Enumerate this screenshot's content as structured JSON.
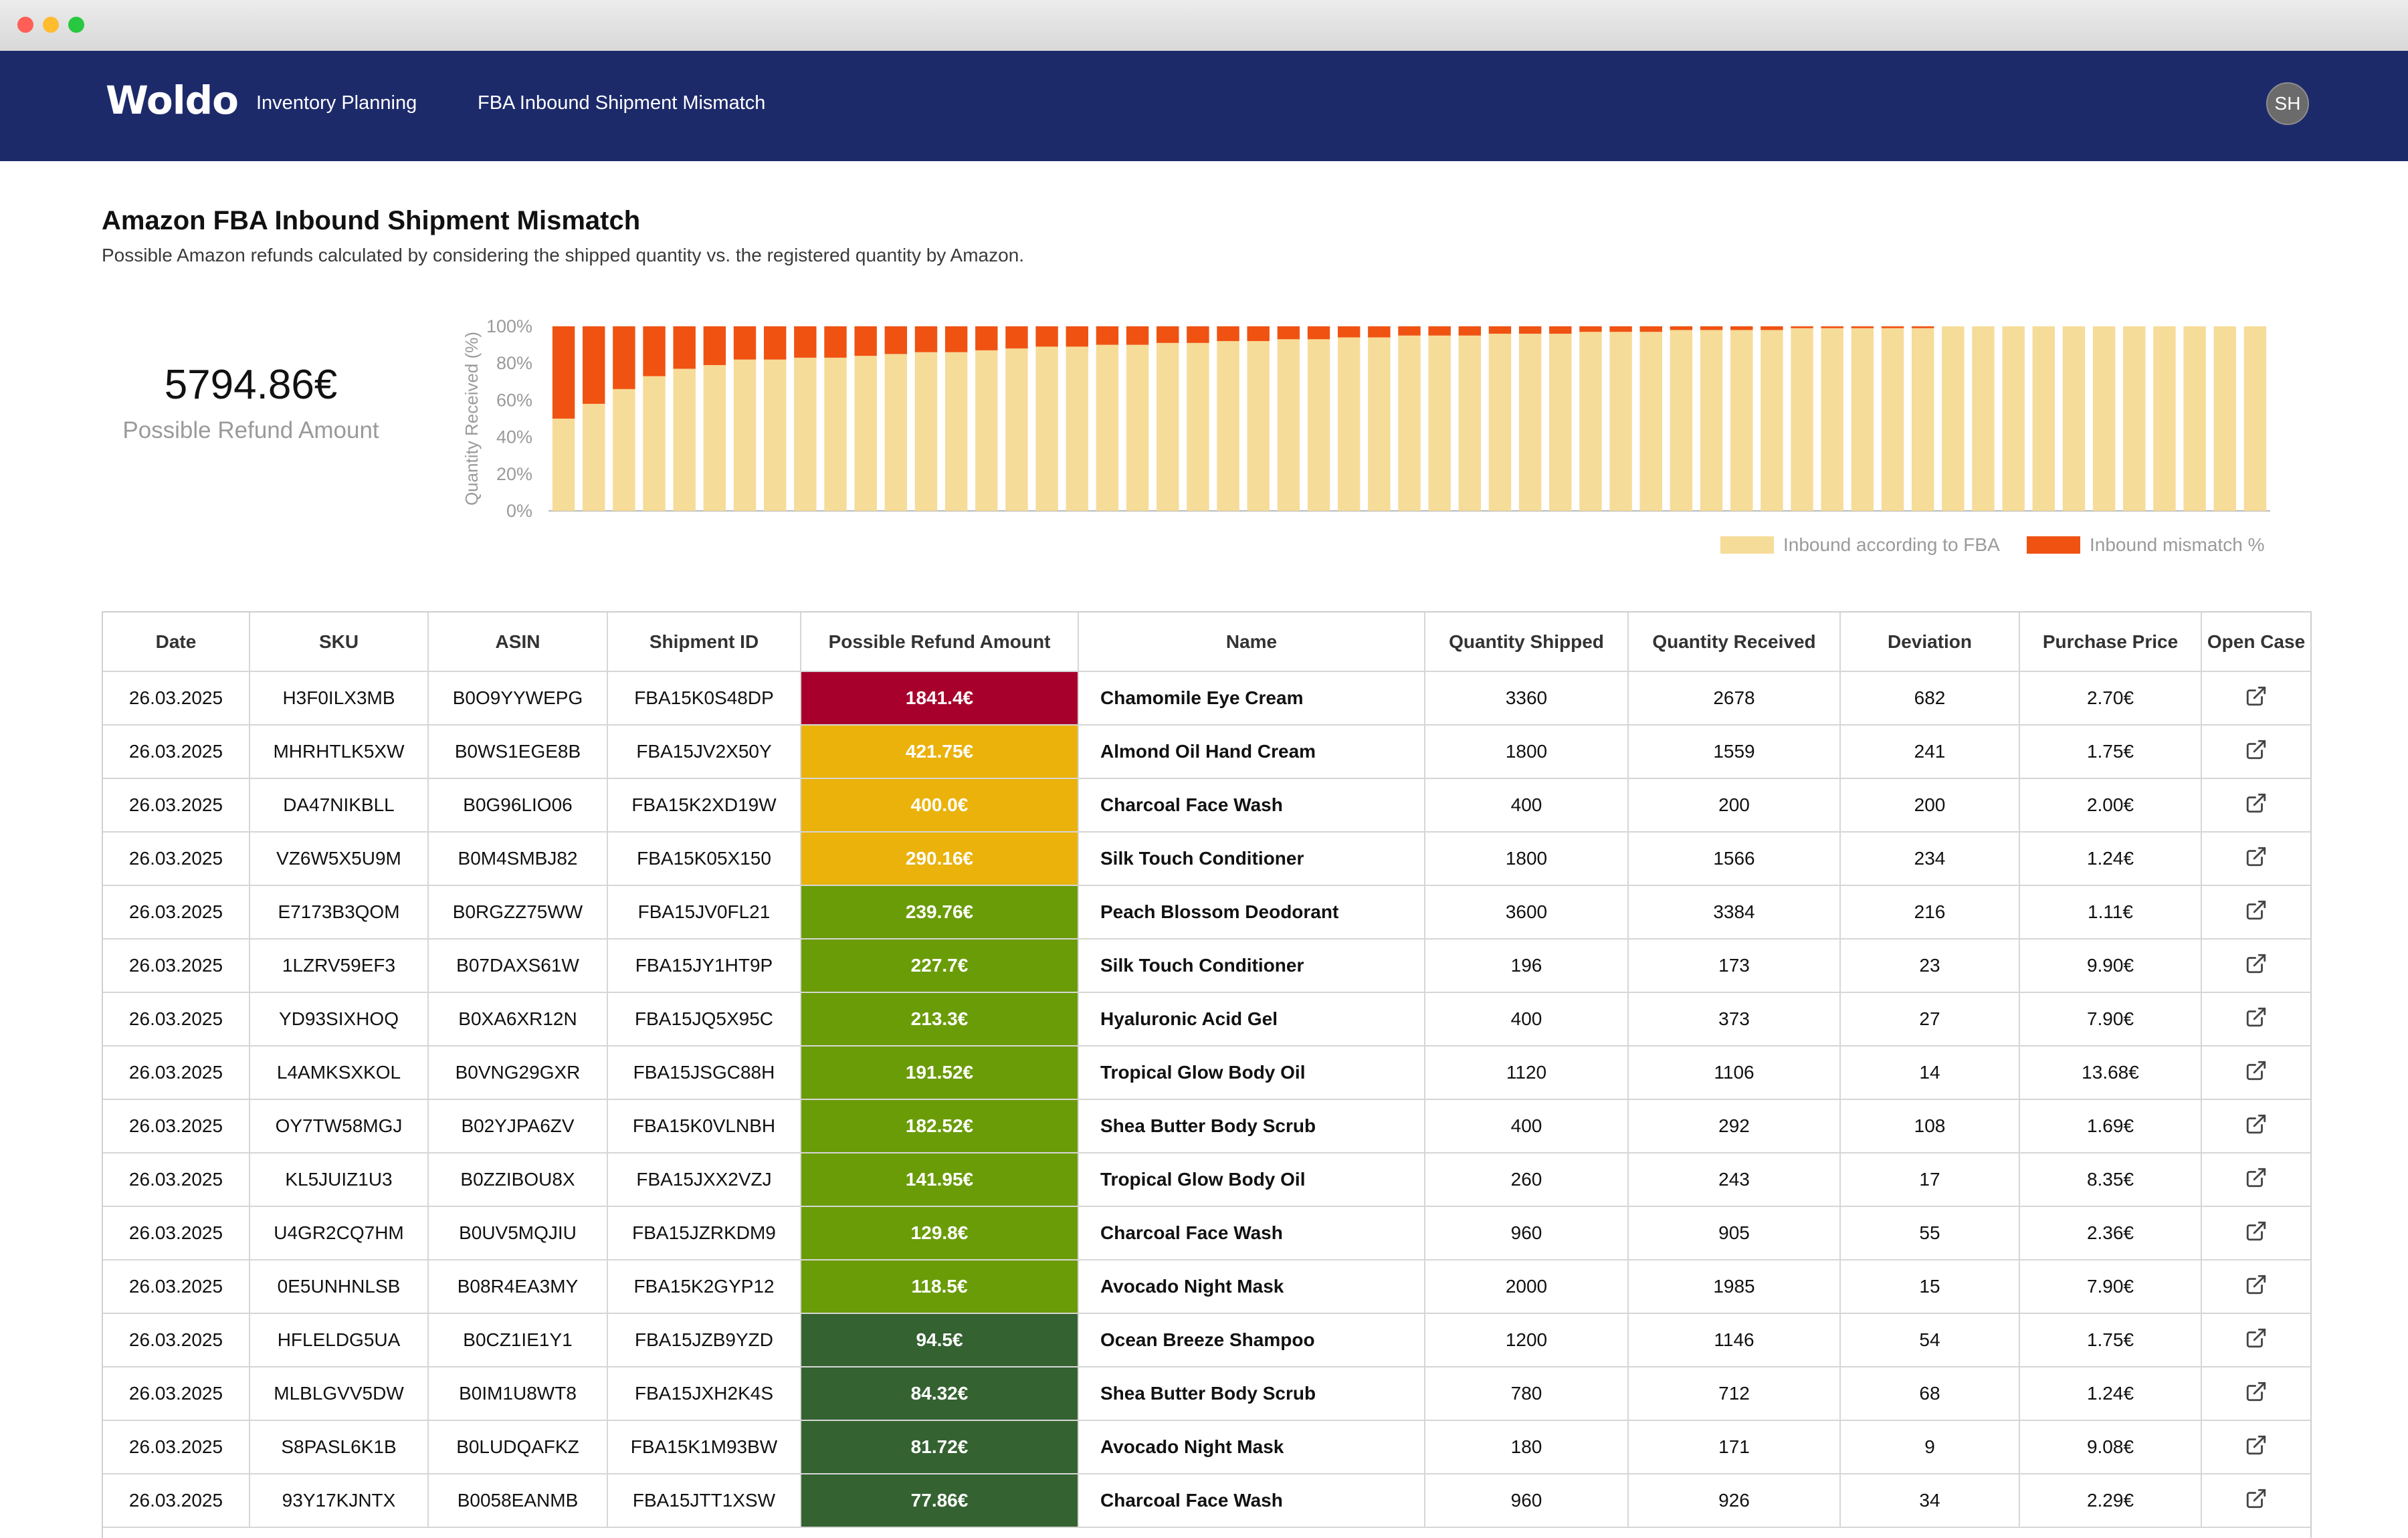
{
  "app": {
    "logo": "Woldo",
    "nav": [
      "Inventory Planning",
      "FBA Inbound Shipment Mismatch"
    ],
    "avatar": "SH"
  },
  "page": {
    "title": "Amazon FBA Inbound Shipment Mismatch",
    "subtitle": "Possible Amazon refunds calculated by considering the shipped quantity vs. the registered quantity by Amazon."
  },
  "kpi": {
    "value": "5794.86€",
    "label": "Possible Refund Amount"
  },
  "colors": {
    "nav": "#1d2a6a",
    "received": "#f6dc99",
    "mismatch": "#f05212",
    "refund_red": "#a8002c",
    "refund_amber": "#eab20a",
    "refund_lime": "#6a9c08",
    "refund_green": "#346231"
  },
  "chart_data": {
    "type": "bar",
    "stacked": true,
    "ylabel": "Quantity Received (%)",
    "yticks": [
      "0%",
      "20%",
      "40%",
      "60%",
      "80%",
      "100%"
    ],
    "ylim": [
      0,
      100
    ],
    "legend": [
      "Inbound according to FBA",
      "Inbound mismatch %"
    ],
    "legend_position": "bottom-right",
    "series": [
      {
        "name": "Inbound according to FBA",
        "values": [
          50,
          58,
          66,
          73,
          77,
          79,
          82,
          82,
          83,
          83,
          84,
          85,
          86,
          86,
          87,
          88,
          89,
          89,
          90,
          90,
          91,
          91,
          92,
          92,
          93,
          93,
          94,
          94,
          95,
          95,
          95,
          96,
          96,
          96,
          97,
          97,
          97,
          98,
          98,
          98,
          98,
          99,
          99,
          99,
          99,
          99,
          100,
          100,
          100,
          100,
          100,
          100,
          100,
          100,
          100,
          100,
          100
        ]
      },
      {
        "name": "Inbound mismatch %",
        "values": [
          50,
          42,
          34,
          27,
          23,
          21,
          18,
          18,
          17,
          17,
          16,
          15,
          14,
          14,
          13,
          12,
          11,
          11,
          10,
          10,
          9,
          9,
          8,
          8,
          7,
          7,
          6,
          6,
          5,
          5,
          5,
          4,
          4,
          4,
          3,
          3,
          3,
          2,
          2,
          2,
          2,
          1,
          1,
          1,
          1,
          1,
          0,
          0,
          0,
          0,
          0,
          0,
          0,
          0,
          0,
          0,
          0
        ]
      }
    ]
  },
  "table": {
    "columns": [
      "Date",
      "SKU",
      "ASIN",
      "Shipment ID",
      "Possible Refund Amount",
      "Name",
      "Quantity Shipped",
      "Quantity Received",
      "Deviation",
      "Purchase Price",
      "Open Case"
    ],
    "rows": [
      {
        "date": "26.03.2025",
        "sku": "H3F0ILX3MB",
        "asin": "B0O9YYWEPG",
        "shipment": "FBA15K0S48DP",
        "refund": "1841.4€",
        "level": "red",
        "name": "Chamomile Eye Cream",
        "shipped": "3360",
        "received": "2678",
        "deviation": "682",
        "price": "2.70€"
      },
      {
        "date": "26.03.2025",
        "sku": "MHRHTLK5XW",
        "asin": "B0WS1EGE8B",
        "shipment": "FBA15JV2X50Y",
        "refund": "421.75€",
        "level": "amber",
        "name": "Almond Oil Hand Cream",
        "shipped": "1800",
        "received": "1559",
        "deviation": "241",
        "price": "1.75€"
      },
      {
        "date": "26.03.2025",
        "sku": "DA47NIKBLL",
        "asin": "B0G96LIO06",
        "shipment": "FBA15K2XD19W",
        "refund": "400.0€",
        "level": "amber",
        "name": "Charcoal Face Wash",
        "shipped": "400",
        "received": "200",
        "deviation": "200",
        "price": "2.00€"
      },
      {
        "date": "26.03.2025",
        "sku": "VZ6W5X5U9M",
        "asin": "B0M4SMBJ82",
        "shipment": "FBA15K05X150",
        "refund": "290.16€",
        "level": "amber",
        "name": "Silk Touch Conditioner",
        "shipped": "1800",
        "received": "1566",
        "deviation": "234",
        "price": "1.24€"
      },
      {
        "date": "26.03.2025",
        "sku": "E7173B3QOM",
        "asin": "B0RGZZ75WW",
        "shipment": "FBA15JV0FL21",
        "refund": "239.76€",
        "level": "lime",
        "name": "Peach Blossom Deodorant",
        "shipped": "3600",
        "received": "3384",
        "deviation": "216",
        "price": "1.11€"
      },
      {
        "date": "26.03.2025",
        "sku": "1LZRV59EF3",
        "asin": "B07DAXS61W",
        "shipment": "FBA15JY1HT9P",
        "refund": "227.7€",
        "level": "lime",
        "name": "Silk Touch Conditioner",
        "shipped": "196",
        "received": "173",
        "deviation": "23",
        "price": "9.90€"
      },
      {
        "date": "26.03.2025",
        "sku": "YD93SIXHOQ",
        "asin": "B0XA6XR12N",
        "shipment": "FBA15JQ5X95C",
        "refund": "213.3€",
        "level": "lime",
        "name": "Hyaluronic Acid Gel",
        "shipped": "400",
        "received": "373",
        "deviation": "27",
        "price": "7.90€"
      },
      {
        "date": "26.03.2025",
        "sku": "L4AMKSXKOL",
        "asin": "B0VNG29GXR",
        "shipment": "FBA15JSGC88H",
        "refund": "191.52€",
        "level": "lime",
        "name": "Tropical Glow Body Oil",
        "shipped": "1120",
        "received": "1106",
        "deviation": "14",
        "price": "13.68€"
      },
      {
        "date": "26.03.2025",
        "sku": "OY7TW58MGJ",
        "asin": "B02YJPA6ZV",
        "shipment": "FBA15K0VLNBH",
        "refund": "182.52€",
        "level": "lime",
        "name": "Shea Butter Body Scrub",
        "shipped": "400",
        "received": "292",
        "deviation": "108",
        "price": "1.69€"
      },
      {
        "date": "26.03.2025",
        "sku": "KL5JUIZ1U3",
        "asin": "B0ZZIBOU8X",
        "shipment": "FBA15JXX2VZJ",
        "refund": "141.95€",
        "level": "lime",
        "name": "Tropical Glow Body Oil",
        "shipped": "260",
        "received": "243",
        "deviation": "17",
        "price": "8.35€"
      },
      {
        "date": "26.03.2025",
        "sku": "U4GR2CQ7HM",
        "asin": "B0UV5MQJIU",
        "shipment": "FBA15JZRKDM9",
        "refund": "129.8€",
        "level": "lime",
        "name": "Charcoal Face Wash",
        "shipped": "960",
        "received": "905",
        "deviation": "55",
        "price": "2.36€"
      },
      {
        "date": "26.03.2025",
        "sku": "0E5UNHNLSB",
        "asin": "B08R4EA3MY",
        "shipment": "FBA15K2GYP12",
        "refund": "118.5€",
        "level": "lime",
        "name": "Avocado Night Mask",
        "shipped": "2000",
        "received": "1985",
        "deviation": "15",
        "price": "7.90€"
      },
      {
        "date": "26.03.2025",
        "sku": "HFLELDG5UA",
        "asin": "B0CZ1IE1Y1",
        "shipment": "FBA15JZB9YZD",
        "refund": "94.5€",
        "level": "green",
        "name": "Ocean Breeze Shampoo",
        "shipped": "1200",
        "received": "1146",
        "deviation": "54",
        "price": "1.75€"
      },
      {
        "date": "26.03.2025",
        "sku": "MLBLGVV5DW",
        "asin": "B0IM1U8WT8",
        "shipment": "FBA15JXH2K4S",
        "refund": "84.32€",
        "level": "green",
        "name": "Shea Butter Body Scrub",
        "shipped": "780",
        "received": "712",
        "deviation": "68",
        "price": "1.24€"
      },
      {
        "date": "26.03.2025",
        "sku": "S8PASL6K1B",
        "asin": "B0LUDQAFKZ",
        "shipment": "FBA15K1M93BW",
        "refund": "81.72€",
        "level": "green",
        "name": "Avocado Night Mask",
        "shipped": "180",
        "received": "171",
        "deviation": "9",
        "price": "9.08€"
      },
      {
        "date": "26.03.2025",
        "sku": "93Y17KJNTX",
        "asin": "B0058EANMB",
        "shipment": "FBA15JTT1XSW",
        "refund": "77.86€",
        "level": "green",
        "name": "Charcoal Face Wash",
        "shipped": "960",
        "received": "926",
        "deviation": "34",
        "price": "2.29€"
      }
    ]
  }
}
